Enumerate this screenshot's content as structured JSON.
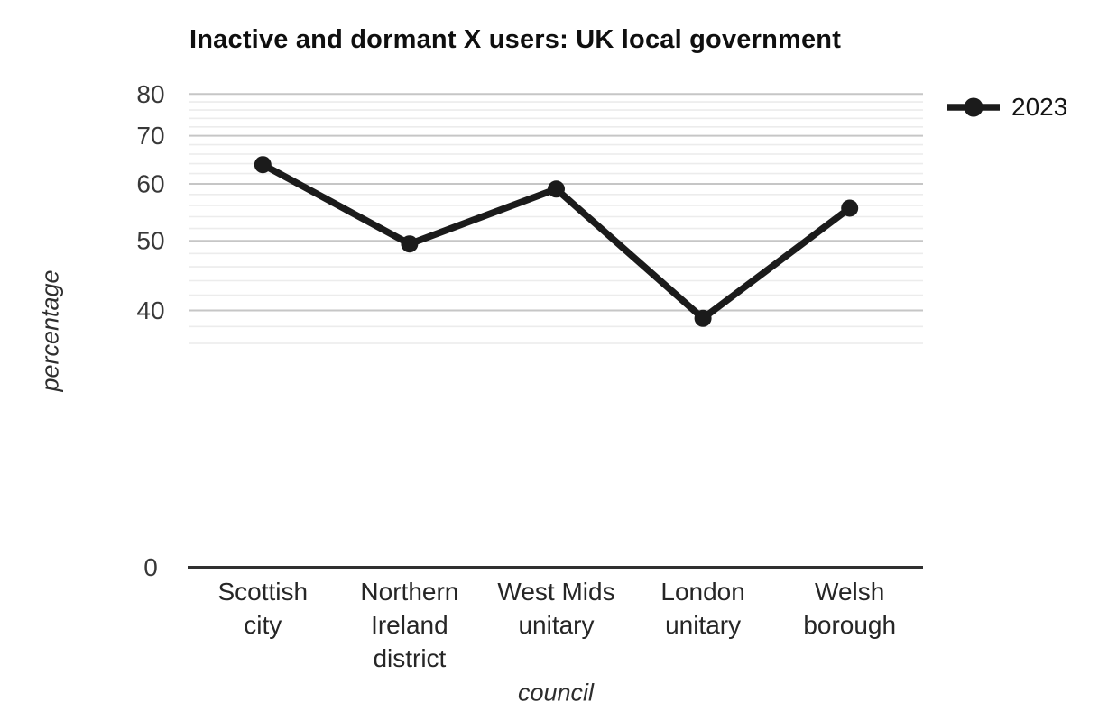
{
  "chart_data": {
    "type": "line",
    "title": "Inactive and dormant X users: UK local government",
    "xlabel": "council",
    "ylabel": "percentage",
    "categories": [
      "Scottish city",
      "Northern Ireland district",
      "West Mids unitary",
      "London unitary",
      "Welsh borough"
    ],
    "category_label_lines": [
      [
        "Scottish",
        "city"
      ],
      [
        "Northern",
        "Ireland",
        "district"
      ],
      [
        "West Mids",
        "unitary"
      ],
      [
        "London",
        "unitary"
      ],
      [
        "Welsh",
        "borough"
      ]
    ],
    "series": [
      {
        "name": "2023",
        "values": [
          63.8,
          49.5,
          59,
          39,
          55.5
        ]
      }
    ],
    "y_axis": {
      "ticks_labeled": [
        0,
        40,
        50,
        60,
        70,
        80
      ],
      "scale": "log-like",
      "grid_minor_step": 2,
      "grid_range": [
        36,
        80
      ]
    },
    "legend_position": "right-top",
    "grid": true,
    "colors": {
      "series": "#1b1b1b",
      "grid_minor": "#ececec",
      "grid_major": "#c6c6c6",
      "axis_line": "#303030",
      "tick_text": "#383838",
      "category_text": "#262626",
      "title_text": "#0f0f0f"
    }
  }
}
